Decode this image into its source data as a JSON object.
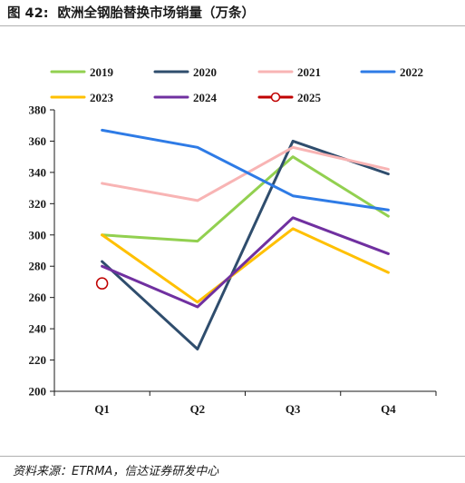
{
  "figure": {
    "number_label": "图 42:",
    "title": "欧洲全钢胎替换市场销量（万条）",
    "source": "资料来源：ETRMA，信达证券研发中心"
  },
  "chart_data": {
    "type": "line",
    "title": "欧洲全钢胎替换市场销量（万条）",
    "xlabel": "",
    "ylabel": "",
    "categories": [
      "Q1",
      "Q2",
      "Q3",
      "Q4"
    ],
    "ylim": [
      200,
      380
    ],
    "yticks": [
      200,
      220,
      240,
      260,
      280,
      300,
      320,
      340,
      360,
      380
    ],
    "grid": false,
    "legend_position": "top",
    "series": [
      {
        "name": "2019",
        "color": "#92d050",
        "values": [
          300,
          296,
          350,
          312
        ]
      },
      {
        "name": "2020",
        "color": "#2f4d6d",
        "values": [
          283,
          227,
          360,
          339
        ]
      },
      {
        "name": "2021",
        "color": "#f8b4b4",
        "values": [
          333,
          322,
          356,
          342
        ]
      },
      {
        "name": "2022",
        "color": "#2e7be6",
        "values": [
          367,
          356,
          325,
          316
        ]
      },
      {
        "name": "2023",
        "color": "#ffc000",
        "values": [
          300,
          257,
          304,
          276
        ]
      },
      {
        "name": "2024",
        "color": "#7030a0",
        "values": [
          280,
          254,
          311,
          288
        ]
      },
      {
        "name": "2025",
        "color": "#c00000",
        "marker": "hollow-circle",
        "values": [
          269,
          null,
          null,
          null
        ]
      }
    ]
  }
}
